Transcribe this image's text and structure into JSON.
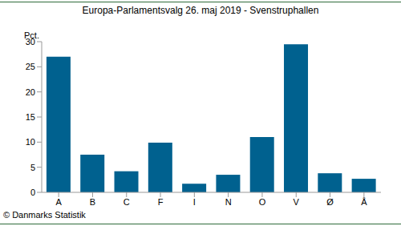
{
  "chart_data": {
    "type": "bar",
    "title": "Europa-Parlamentsvalg 26. maj 2019 - Svenstruphallen",
    "y_label": "Pct.",
    "source": "© Danmarks Statistik",
    "categories": [
      "A",
      "B",
      "C",
      "F",
      "I",
      "N",
      "O",
      "V",
      "Ø",
      "Å"
    ],
    "values": [
      27,
      7.5,
      4.2,
      9.9,
      1.7,
      3.5,
      11,
      29.5,
      3.8,
      2.7
    ],
    "color": "#00618f",
    "ylim": [
      0,
      30
    ],
    "yticks": [
      0,
      5,
      10,
      15,
      20,
      25,
      30
    ],
    "grid": false
  }
}
